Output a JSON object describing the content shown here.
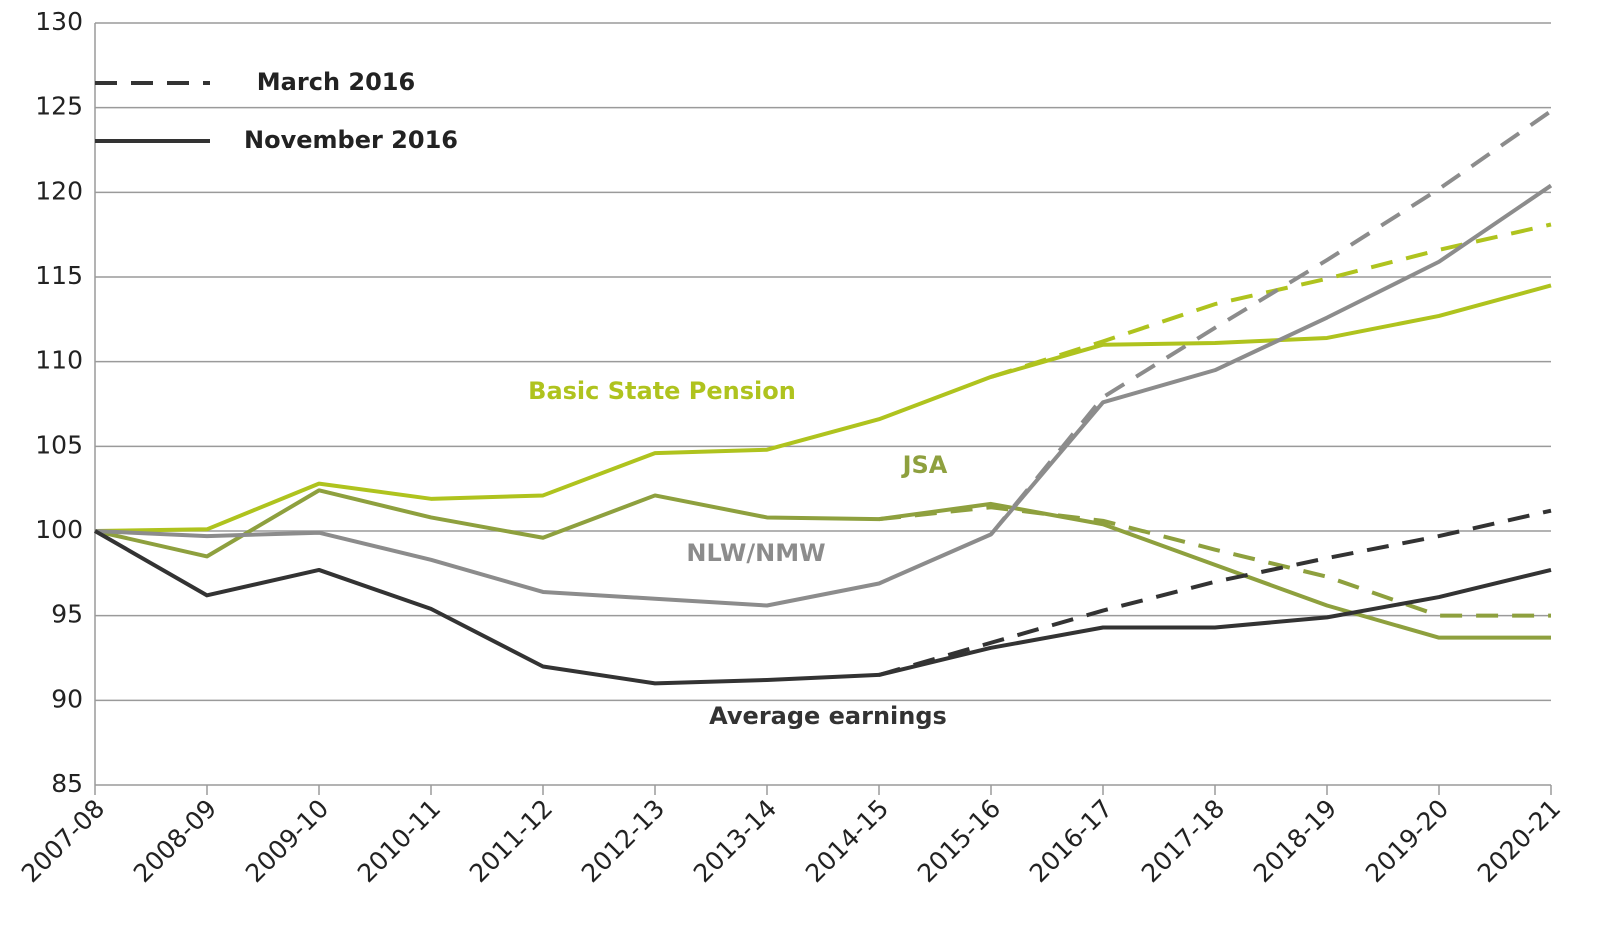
{
  "chart_data": {
    "type": "line",
    "categories": [
      "2007-08",
      "2008-09",
      "2009-10",
      "2010-11",
      "2011-12",
      "2012-13",
      "2013-14",
      "2014-15",
      "2015-16",
      "2016-17",
      "2017-18",
      "2018-19",
      "2019-20",
      "2020-21"
    ],
    "ylim": [
      85,
      130
    ],
    "yticks": [
      85,
      90,
      95,
      100,
      105,
      110,
      115,
      120,
      125,
      130
    ],
    "grid": true,
    "scenarios": [
      {
        "name": "March 2016",
        "dashed": true
      },
      {
        "name": "November 2016",
        "dashed": false
      }
    ],
    "series": [
      {
        "name": "Basic State Pension",
        "color": "#afc31e",
        "values": [
          [
            null,
            null,
            null,
            null,
            null,
            null,
            null,
            null,
            109.1,
            111.2,
            113.4,
            114.9,
            116.6,
            118.1
          ],
          [
            100,
            100.1,
            102.8,
            101.9,
            102.1,
            104.6,
            104.8,
            106.6,
            109.1,
            111.0,
            111.1,
            111.4,
            112.7,
            114.5
          ]
        ]
      },
      {
        "name": "JSA",
        "color": "#8ea03e",
        "values": [
          [
            null,
            null,
            null,
            null,
            null,
            null,
            null,
            100.7,
            101.4,
            100.6,
            98.9,
            97.3,
            95.0,
            95.0
          ],
          [
            100,
            98.5,
            102.4,
            100.8,
            99.6,
            102.1,
            100.8,
            100.7,
            101.6,
            100.4,
            98.0,
            95.6,
            93.7,
            93.7
          ]
        ]
      },
      {
        "name": "NLW/NMW",
        "color": "#8c8c8c",
        "values": [
          [
            null,
            null,
            null,
            null,
            null,
            null,
            null,
            null,
            99.8,
            107.9,
            112.0,
            116.0,
            120.2,
            124.8
          ],
          [
            100,
            99.7,
            99.9,
            98.3,
            96.4,
            96.0,
            95.6,
            96.9,
            99.8,
            107.6,
            109.5,
            112.6,
            115.9,
            120.4
          ]
        ]
      },
      {
        "name": "Average earnings",
        "color": "#333333",
        "values": [
          [
            null,
            null,
            null,
            null,
            null,
            null,
            null,
            91.5,
            93.4,
            95.3,
            97.0,
            98.4,
            99.7,
            101.2
          ],
          [
            100,
            96.2,
            97.7,
            95.4,
            92.0,
            91.0,
            91.2,
            91.5,
            93.1,
            94.3,
            94.3,
            94.9,
            96.1,
            97.7
          ]
        ]
      }
    ]
  }
}
